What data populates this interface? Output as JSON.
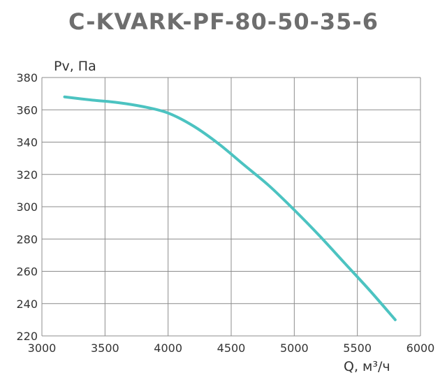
{
  "chart_data": {
    "type": "line",
    "title": "C-KVARK-PF-80-50-35-6",
    "xlabel": "Q, м³/ч",
    "ylabel": "Pv, Па",
    "xlim": [
      3000,
      6000
    ],
    "ylim": [
      220,
      380
    ],
    "x_ticks": [
      3000,
      3500,
      4000,
      4500,
      5000,
      5500,
      6000
    ],
    "y_ticks": [
      220,
      240,
      260,
      280,
      300,
      320,
      340,
      360,
      380
    ],
    "grid": true,
    "series": [
      {
        "color": "#4cc3c1",
        "x": [
          3180,
          3400,
          3600,
          3800,
          4000,
          4200,
          4400,
          4600,
          4800,
          5000,
          5200,
          5400,
          5600,
          5800
        ],
        "y": [
          368,
          366,
          364.5,
          362,
          358,
          350,
          339,
          326,
          313,
          298,
          282,
          265,
          248,
          230
        ]
      }
    ]
  }
}
